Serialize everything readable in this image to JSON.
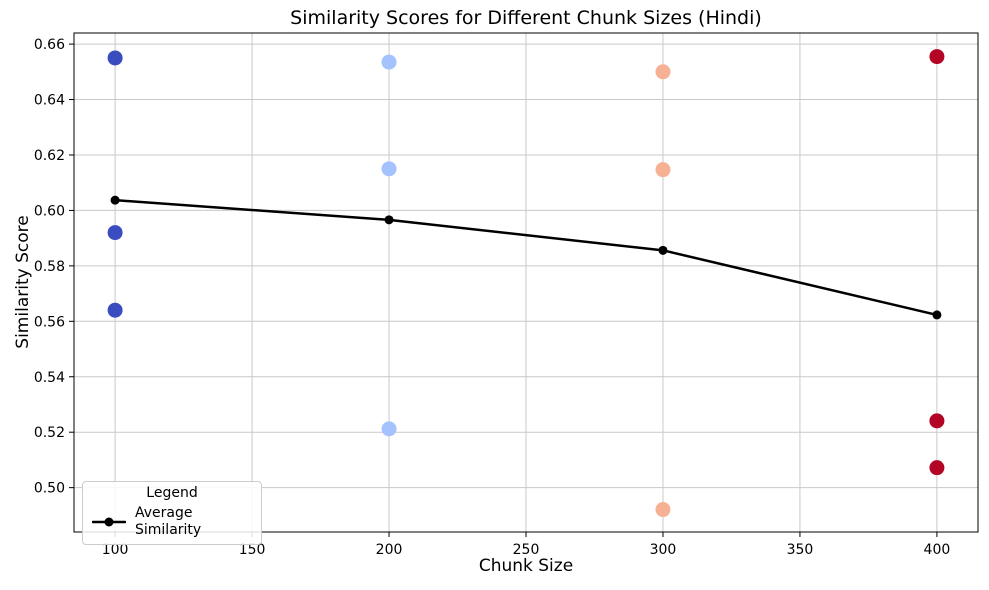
{
  "title": "Similarity Scores for Different Chunk Sizes (Hindi)",
  "chart_data": {
    "type": "scatter",
    "title": "Similarity Scores for Different Chunk Sizes (Hindi)",
    "xlabel": "Chunk Size",
    "ylabel": "Similarity Score",
    "xlim": [
      85,
      415
    ],
    "ylim": [
      0.484,
      0.664
    ],
    "x_ticks": [
      100,
      150,
      200,
      250,
      300,
      350,
      400
    ],
    "y_ticks": [
      0.5,
      0.52,
      0.54,
      0.56,
      0.58,
      0.6,
      0.62,
      0.64,
      0.66
    ],
    "grid": true,
    "grid_color": "#c9c9c9",
    "axis_color": "#000000",
    "scatter_groups": [
      {
        "chunk_size": 100,
        "color": "#3b4cc0",
        "values": [
          0.655,
          0.592,
          0.564
        ]
      },
      {
        "chunk_size": 200,
        "color": "#a4c2fe",
        "values": [
          0.6535,
          0.615,
          0.5212
        ]
      },
      {
        "chunk_size": 300,
        "color": "#f6b194",
        "values": [
          0.65,
          0.6147,
          0.4921
        ]
      },
      {
        "chunk_size": 400,
        "color": "#b40426",
        "values": [
          0.6555,
          0.5241,
          0.5072
        ]
      }
    ],
    "average_line": {
      "label": "Average Similarity",
      "color": "#000000",
      "x": [
        100,
        200,
        300,
        400
      ],
      "y": [
        0.6037,
        0.5966,
        0.5856,
        0.5623
      ]
    },
    "legend": {
      "title": "Legend",
      "entries": [
        "Average Similarity"
      ],
      "position": "lower left"
    }
  }
}
